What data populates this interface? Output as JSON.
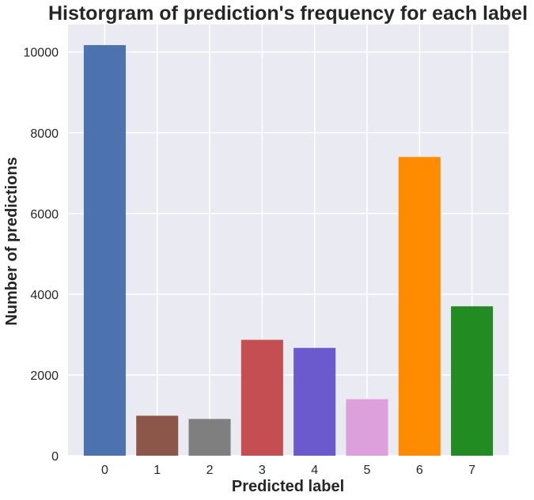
{
  "chart_data": {
    "type": "bar",
    "title": "Historgram of prediction's frequency for each label",
    "xlabel": "Predicted label",
    "ylabel": "Number of predictions",
    "categories": [
      "0",
      "1",
      "2",
      "3",
      "4",
      "5",
      "6",
      "7"
    ],
    "values": [
      10170,
      990,
      910,
      2870,
      2670,
      1400,
      7400,
      3700
    ],
    "colors": [
      "#4c72b0",
      "#8c564b",
      "#7f7f7f",
      "#c44e52",
      "#6a5acd",
      "#dda0dd",
      "#ff8c00",
      "#228b22"
    ],
    "yticks": [
      0,
      2000,
      4000,
      6000,
      8000,
      10000
    ],
    "ylim": [
      0,
      10680
    ],
    "grid": true,
    "background": "#eaeaf2",
    "grid_color": "#ffffff"
  }
}
